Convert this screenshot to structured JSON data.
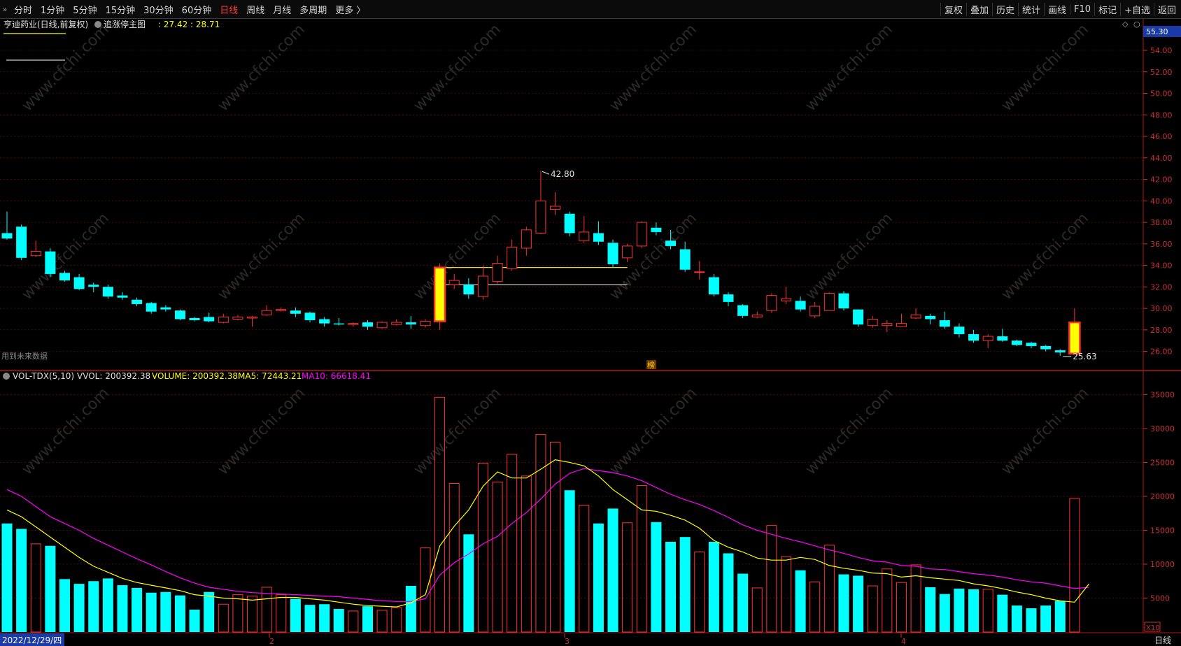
{
  "toolbar": {
    "collapse_glyph": "»",
    "periods": [
      "分时",
      "1分钟",
      "5分钟",
      "15分钟",
      "30分钟",
      "60分钟",
      "日线",
      "周线",
      "月线",
      "多周期",
      "更多 〉"
    ],
    "active_period": "日线",
    "actions": [
      "复权",
      "叠加",
      "历史",
      "统计",
      "画线",
      "F10",
      "标记",
      "+自选",
      "返回"
    ]
  },
  "main_panel": {
    "title": "亨迪药业(日线,前复权)",
    "indicator": "追涨停主图",
    "indicator_values": ": 27.42 : 28.71",
    "warning": "用到未来数据",
    "current_price": "55.30",
    "price_ticks": [
      "54.00",
      "52.00",
      "50.00",
      "48.00",
      "46.00",
      "44.00",
      "42.00",
      "40.00",
      "38.00",
      "36.00",
      "34.00",
      "32.00",
      "30.00",
      "28.00",
      "26.00"
    ],
    "high_label": "42.80",
    "low_label": "25.63",
    "marker_char": "榜"
  },
  "volume_panel": {
    "name": "VOL-TDX(5,10)",
    "vvol": "VVOL: 200392.38",
    "volume": "VOLUME: 200392.38",
    "ma5": "MA5: 72443.21",
    "ma10": "MA10: 66618.41",
    "ticks": [
      "35000",
      "30000",
      "25000",
      "20000",
      "15000",
      "10000",
      "5000"
    ],
    "unit": "X10"
  },
  "date_axis": {
    "start_date": "2022/12/29/四",
    "month_labels": [
      "2",
      "3",
      "4"
    ],
    "period_label": "日线"
  },
  "watermark": "www.cfchi.com",
  "colors": {
    "up": "#ff3232",
    "down": "#00ffff",
    "limit_up_fill": "#ffff00",
    "ma5": "#ffff00",
    "ma10": "#ff00ff",
    "grid": "#7a1010",
    "axis_text": "#c83232"
  },
  "chart_data": {
    "type": "candlestick",
    "price_range": [
      25,
      55.3
    ],
    "volume_range": [
      0,
      37000
    ],
    "candles": [
      {
        "o": 37.0,
        "c": 36.5,
        "h": 39.0,
        "l": 36.4,
        "v": 16000
      },
      {
        "o": 37.6,
        "c": 34.7,
        "h": 37.8,
        "l": 34.5,
        "v": 15200
      },
      {
        "o": 34.9,
        "c": 35.3,
        "h": 36.3,
        "l": 34.8,
        "v": 13000
      },
      {
        "o": 35.3,
        "c": 33.2,
        "h": 35.6,
        "l": 32.9,
        "v": 12700
      },
      {
        "o": 33.3,
        "c": 32.6,
        "h": 33.5,
        "l": 32.5,
        "v": 7800
      },
      {
        "o": 32.9,
        "c": 31.8,
        "h": 33.2,
        "l": 31.7,
        "v": 7100
      },
      {
        "o": 32.2,
        "c": 32.0,
        "h": 32.4,
        "l": 31.5,
        "v": 7500
      },
      {
        "o": 32.0,
        "c": 31.1,
        "h": 32.2,
        "l": 30.9,
        "v": 7900
      },
      {
        "o": 31.2,
        "c": 31.0,
        "h": 31.5,
        "l": 30.8,
        "v": 6900
      },
      {
        "o": 30.8,
        "c": 30.4,
        "h": 31.0,
        "l": 30.2,
        "v": 6500
      },
      {
        "o": 30.5,
        "c": 29.7,
        "h": 30.6,
        "l": 29.5,
        "v": 5800
      },
      {
        "o": 30.1,
        "c": 29.9,
        "h": 30.3,
        "l": 29.7,
        "v": 5900
      },
      {
        "o": 29.8,
        "c": 29.0,
        "h": 29.9,
        "l": 28.9,
        "v": 5400
      },
      {
        "o": 29.1,
        "c": 28.9,
        "h": 29.2,
        "l": 28.8,
        "v": 3300
      },
      {
        "o": 29.2,
        "c": 28.8,
        "h": 29.6,
        "l": 28.7,
        "v": 5900
      },
      {
        "o": 28.7,
        "c": 29.2,
        "h": 29.5,
        "l": 28.6,
        "v": 4100
      },
      {
        "o": 29.0,
        "c": 29.2,
        "h": 29.4,
        "l": 28.9,
        "v": 5500
      },
      {
        "o": 29.1,
        "c": 29.2,
        "h": 29.3,
        "l": 28.3,
        "v": 5300
      },
      {
        "o": 29.4,
        "c": 29.8,
        "h": 30.3,
        "l": 29.3,
        "v": 6600
      },
      {
        "o": 29.8,
        "c": 29.9,
        "h": 30.1,
        "l": 29.7,
        "v": 5500
      },
      {
        "o": 29.8,
        "c": 29.5,
        "h": 30.1,
        "l": 29.2,
        "v": 4900
      },
      {
        "o": 29.6,
        "c": 28.9,
        "h": 29.7,
        "l": 28.7,
        "v": 4000
      },
      {
        "o": 29.0,
        "c": 28.6,
        "h": 29.2,
        "l": 28.3,
        "v": 4100
      },
      {
        "o": 28.6,
        "c": 28.5,
        "h": 29.1,
        "l": 28.4,
        "v": 3400
      },
      {
        "o": 28.5,
        "c": 28.6,
        "h": 28.7,
        "l": 28.3,
        "v": 3100
      },
      {
        "o": 28.7,
        "c": 28.3,
        "h": 28.9,
        "l": 28.0,
        "v": 3800
      },
      {
        "o": 28.2,
        "c": 28.7,
        "h": 28.8,
        "l": 28.1,
        "v": 3200
      },
      {
        "o": 28.5,
        "c": 28.7,
        "h": 29.0,
        "l": 28.4,
        "v": 3600
      },
      {
        "o": 28.7,
        "c": 28.5,
        "h": 29.3,
        "l": 28.1,
        "v": 6800
      },
      {
        "o": 28.4,
        "c": 28.8,
        "h": 29.0,
        "l": 28.2,
        "v": 12400
      },
      {
        "o": 28.8,
        "c": 33.8,
        "h": 34.2,
        "l": 28.0,
        "v": 34600,
        "limit_up": true
      },
      {
        "o": 32.2,
        "c": 32.6,
        "h": 33.2,
        "l": 31.8,
        "v": 21900
      },
      {
        "o": 32.2,
        "c": 31.3,
        "h": 32.8,
        "l": 30.9,
        "v": 14400
      },
      {
        "o": 31.1,
        "c": 33.0,
        "h": 34.0,
        "l": 30.8,
        "v": 24900
      },
      {
        "o": 32.5,
        "c": 34.2,
        "h": 34.9,
        "l": 32.3,
        "v": 22100
      },
      {
        "o": 33.7,
        "c": 35.7,
        "h": 36.4,
        "l": 33.5,
        "v": 26200
      },
      {
        "o": 35.6,
        "c": 37.3,
        "h": 37.6,
        "l": 34.9,
        "v": 23000
      },
      {
        "o": 37.0,
        "c": 40.0,
        "h": 42.8,
        "l": 36.9,
        "v": 29100
      },
      {
        "o": 39.2,
        "c": 39.5,
        "h": 40.8,
        "l": 38.7,
        "v": 28000
      },
      {
        "o": 38.8,
        "c": 37.0,
        "h": 39.0,
        "l": 36.7,
        "v": 20900
      },
      {
        "o": 36.3,
        "c": 37.1,
        "h": 38.6,
        "l": 36.1,
        "v": 18700
      },
      {
        "o": 37.0,
        "c": 36.2,
        "h": 38.1,
        "l": 35.9,
        "v": 16000
      },
      {
        "o": 36.1,
        "c": 34.1,
        "h": 36.4,
        "l": 33.8,
        "v": 18200
      },
      {
        "o": 34.7,
        "c": 35.8,
        "h": 36.0,
        "l": 34.3,
        "v": 16100
      },
      {
        "o": 35.8,
        "c": 38.0,
        "h": 38.1,
        "l": 35.6,
        "v": 21600
      },
      {
        "o": 37.5,
        "c": 37.1,
        "h": 38.0,
        "l": 36.8,
        "v": 16200
      },
      {
        "o": 36.3,
        "c": 35.8,
        "h": 37.3,
        "l": 35.5,
        "v": 13300
      },
      {
        "o": 35.5,
        "c": 33.6,
        "h": 36.2,
        "l": 33.4,
        "v": 14000
      },
      {
        "o": 33.4,
        "c": 33.4,
        "h": 34.4,
        "l": 32.7,
        "v": 11800
      },
      {
        "o": 32.9,
        "c": 31.3,
        "h": 33.2,
        "l": 31.1,
        "v": 13300
      },
      {
        "o": 31.3,
        "c": 30.6,
        "h": 31.5,
        "l": 30.2,
        "v": 11600
      },
      {
        "o": 30.3,
        "c": 29.3,
        "h": 30.4,
        "l": 29.1,
        "v": 8600
      },
      {
        "o": 29.2,
        "c": 29.4,
        "h": 29.7,
        "l": 29.1,
        "v": 6500
      },
      {
        "o": 29.8,
        "c": 31.2,
        "h": 31.4,
        "l": 29.6,
        "v": 15700
      },
      {
        "o": 30.7,
        "c": 30.9,
        "h": 32.0,
        "l": 30.4,
        "v": 11100
      },
      {
        "o": 30.7,
        "c": 29.9,
        "h": 31.1,
        "l": 29.7,
        "v": 9100
      },
      {
        "o": 29.3,
        "c": 30.2,
        "h": 30.6,
        "l": 29.1,
        "v": 7400
      },
      {
        "o": 29.8,
        "c": 31.4,
        "h": 31.5,
        "l": 29.8,
        "v": 12800
      },
      {
        "o": 31.4,
        "c": 30.0,
        "h": 31.6,
        "l": 29.8,
        "v": 8500
      },
      {
        "o": 29.9,
        "c": 28.5,
        "h": 29.9,
        "l": 28.3,
        "v": 8300
      },
      {
        "o": 28.4,
        "c": 29.0,
        "h": 29.3,
        "l": 28.2,
        "v": 6800
      },
      {
        "o": 28.4,
        "c": 28.6,
        "h": 28.9,
        "l": 27.8,
        "v": 9300
      },
      {
        "o": 28.3,
        "c": 28.6,
        "h": 29.5,
        "l": 28.3,
        "v": 7300
      },
      {
        "o": 29.1,
        "c": 29.4,
        "h": 30.0,
        "l": 29.0,
        "v": 9900
      },
      {
        "o": 29.3,
        "c": 29.0,
        "h": 29.5,
        "l": 28.5,
        "v": 6600
      },
      {
        "o": 28.9,
        "c": 28.3,
        "h": 29.7,
        "l": 28.1,
        "v": 5600
      },
      {
        "o": 28.3,
        "c": 27.6,
        "h": 28.6,
        "l": 27.3,
        "v": 6400
      },
      {
        "o": 27.6,
        "c": 27.0,
        "h": 28.0,
        "l": 26.8,
        "v": 6300
      },
      {
        "o": 27.0,
        "c": 27.4,
        "h": 27.6,
        "l": 26.3,
        "v": 6300
      },
      {
        "o": 27.4,
        "c": 27.0,
        "h": 28.1,
        "l": 26.9,
        "v": 5500
      },
      {
        "o": 27.0,
        "c": 26.6,
        "h": 27.1,
        "l": 26.5,
        "v": 3900
      },
      {
        "o": 26.8,
        "c": 26.5,
        "h": 26.9,
        "l": 26.3,
        "v": 3500
      },
      {
        "o": 26.5,
        "c": 26.2,
        "h": 26.6,
        "l": 26.0,
        "v": 3900
      },
      {
        "o": 26.1,
        "c": 25.9,
        "h": 26.2,
        "l": 25.6,
        "v": 4600
      },
      {
        "o": 25.8,
        "c": 28.7,
        "h": 30.0,
        "l": 25.7,
        "v": 19700,
        "limit_up": true
      }
    ],
    "ma5": [
      18000,
      17000,
      15500,
      14000,
      12500,
      11000,
      9700,
      8800,
      7900,
      7300,
      6900,
      6500,
      6100,
      5500,
      5300,
      5000,
      4900,
      4700,
      4900,
      5100,
      5100,
      4900,
      4700,
      4400,
      4100,
      3900,
      3800,
      3700,
      4300,
      5500,
      12700,
      15600,
      18000,
      21500,
      23600,
      22700,
      22700,
      24000,
      25400,
      25000,
      24500,
      23000,
      21000,
      19500,
      18000,
      17800,
      17200,
      16500,
      15300,
      13500,
      12500,
      11800,
      10900,
      10600,
      10600,
      11000,
      10700,
      9800,
      9400,
      9100,
      8700,
      8600,
      8100,
      8300,
      8000,
      7800,
      7600,
      7100,
      6800,
      6400,
      5900,
      5500,
      5000,
      4600,
      4400,
      7100
    ],
    "ma10": [
      21000,
      20000,
      18500,
      17000,
      16000,
      15000,
      13800,
      12800,
      11800,
      10800,
      9900,
      8900,
      8000,
      7200,
      6600,
      6300,
      6000,
      5800,
      5700,
      5600,
      5500,
      5400,
      5300,
      5200,
      5000,
      4800,
      4600,
      4500,
      4500,
      4900,
      8400,
      10200,
      11500,
      13000,
      14100,
      16000,
      17600,
      19600,
      21800,
      23400,
      24100,
      23800,
      23500,
      23000,
      22300,
      21300,
      20300,
      19500,
      18800,
      17900,
      16900,
      15800,
      15000,
      14400,
      13800,
      13300,
      12700,
      12100,
      11600,
      11000,
      10500,
      10300,
      9800,
      9700,
      9300,
      9200,
      8900,
      8600,
      8400,
      8100,
      7700,
      7400,
      7200,
      6800,
      6400,
      6600
    ]
  }
}
